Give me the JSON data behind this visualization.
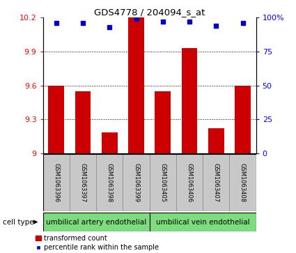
{
  "title": "GDS4778 / 204094_s_at",
  "samples": [
    "GSM1063396",
    "GSM1063397",
    "GSM1063398",
    "GSM1063399",
    "GSM1063405",
    "GSM1063406",
    "GSM1063407",
    "GSM1063408"
  ],
  "bar_values": [
    9.6,
    9.55,
    9.18,
    10.2,
    9.55,
    9.93,
    9.22,
    9.6
  ],
  "percentile_values": [
    96,
    96,
    93,
    99,
    97,
    97,
    94,
    96
  ],
  "ylim_left": [
    9.0,
    10.2
  ],
  "ylim_right": [
    0,
    100
  ],
  "yticks_left": [
    9.0,
    9.3,
    9.6,
    9.9,
    10.2
  ],
  "yticks_right": [
    0,
    25,
    50,
    75,
    100
  ],
  "ytick_labels_left": [
    "9",
    "9.3",
    "9.6",
    "9.9",
    "10.2"
  ],
  "ytick_labels_right": [
    "0",
    "25",
    "50",
    "75",
    "100%"
  ],
  "bar_color": "#cc0000",
  "dot_color": "#0000cc",
  "cell_types": [
    {
      "label": "umbilical artery endothelial",
      "start": 0,
      "end": 4
    },
    {
      "label": "umbilical vein endothelial",
      "start": 4,
      "end": 8
    }
  ],
  "cell_type_bg": "#7ddc7d",
  "cell_type_label": "cell type",
  "legend_bar_label": "transformed count",
  "legend_dot_label": "percentile rank within the sample",
  "bg_color": "#ffffff",
  "sample_box_color": "#c8c8c8"
}
